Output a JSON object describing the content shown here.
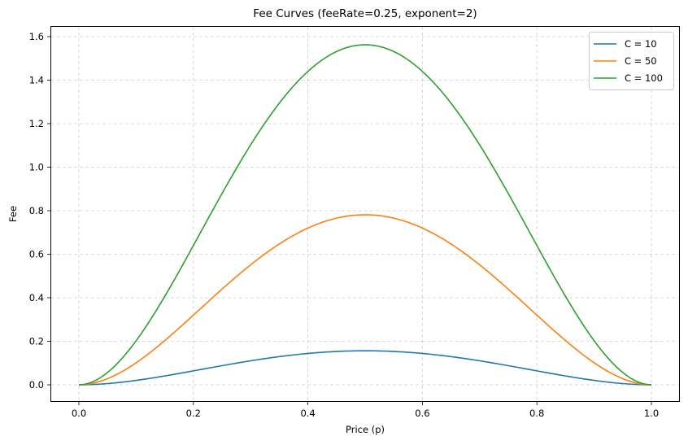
{
  "chart_data": {
    "type": "line",
    "title": "Fee Curves (feeRate=0.25, exponent=2)",
    "xlabel": "Price (p)",
    "ylabel": "Fee",
    "xlim": [
      -0.05,
      1.05
    ],
    "ylim": [
      -0.078,
      1.64
    ],
    "x_ticks": [
      "0.0",
      "0.2",
      "0.4",
      "0.6",
      "0.8",
      "1.0"
    ],
    "y_ticks": [
      "0.0",
      "0.2",
      "0.4",
      "0.6",
      "0.8",
      "1.0",
      "1.2",
      "1.4",
      "1.6"
    ],
    "grid": true,
    "legend_position": "upper right",
    "x": [
      0.0,
      0.05,
      0.1,
      0.15,
      0.2,
      0.25,
      0.3,
      0.35,
      0.4,
      0.45,
      0.5,
      0.55,
      0.6,
      0.65,
      0.7,
      0.75,
      0.8,
      0.85,
      0.9,
      0.95,
      1.0
    ],
    "series": [
      {
        "name": "C = 10",
        "color": "#1f77b4",
        "values": [
          0.0,
          0.0056,
          0.0203,
          0.0406,
          0.064,
          0.0879,
          0.1103,
          0.1294,
          0.144,
          0.1531,
          0.1563,
          0.1531,
          0.144,
          0.1294,
          0.1103,
          0.0879,
          0.064,
          0.0406,
          0.0203,
          0.0056,
          0.0
        ]
      },
      {
        "name": "C = 50",
        "color": "#ff7f0e",
        "values": [
          0.0,
          0.0282,
          0.1013,
          0.2032,
          0.32,
          0.4395,
          0.5513,
          0.647,
          0.72,
          0.7657,
          0.7813,
          0.7657,
          0.72,
          0.647,
          0.5513,
          0.4395,
          0.32,
          0.2032,
          0.1013,
          0.0282,
          0.0
        ]
      },
      {
        "name": "C = 100",
        "color": "#2ca02c",
        "values": [
          0.0,
          0.0564,
          0.2025,
          0.4064,
          0.64,
          0.8789,
          1.1025,
          1.2939,
          1.44,
          1.5314,
          1.5625,
          1.5314,
          1.44,
          1.2939,
          1.1025,
          0.8789,
          0.64,
          0.4064,
          0.2025,
          0.0564,
          0.0
        ]
      }
    ]
  }
}
